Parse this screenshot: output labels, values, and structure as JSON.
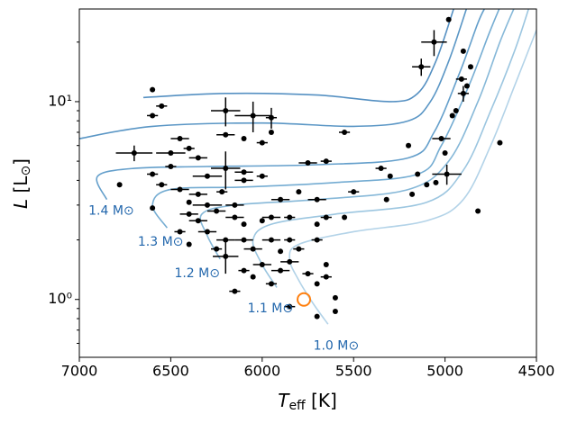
{
  "chart_data": {
    "type": "scatter",
    "xlabel": {
      "main": "T",
      "sub": "eff",
      "rest": " [K]"
    },
    "ylabel": {
      "main": "L",
      "rest": " [L",
      "sub": "⊙",
      "end": "]"
    },
    "xlim": [
      7000,
      4500
    ],
    "xticks": [
      7000,
      6500,
      6000,
      5500,
      5000,
      4500
    ],
    "ylim": [
      0.51,
      29.4
    ],
    "log_y": true,
    "yticks": [
      {
        "value": 1,
        "label": "10⁰"
      },
      {
        "value": 10,
        "label": "10¹"
      }
    ],
    "yminorticks": [
      0.6,
      0.7,
      0.8,
      0.9,
      2,
      3,
      4,
      5,
      6,
      7,
      8,
      9,
      20
    ],
    "color": "#000000",
    "x": [
      4980,
      5060,
      5130,
      4900,
      4860,
      4910,
      4880,
      4900,
      6600,
      6550,
      6600,
      6200,
      6050,
      5950,
      5950,
      5550,
      5200,
      4960,
      4940,
      5020,
      5000,
      4700,
      4990,
      5350,
      5300,
      5150,
      5100,
      5180,
      5320,
      5500,
      5750,
      5650,
      6000,
      6100,
      6200,
      6450,
      6500,
      6700,
      6400,
      6350,
      6500,
      6300,
      6200,
      6100,
      6100,
      6000,
      6600,
      6550,
      6780,
      6450,
      6350,
      6400,
      6300,
      6220,
      6250,
      6150,
      5900,
      5800,
      5700,
      6600,
      6400,
      6350,
      6150,
      6100,
      6000,
      5950,
      5850,
      5650,
      5700,
      5550,
      6450,
      6300,
      6200,
      6100,
      5950,
      5850,
      5700,
      6400,
      6250,
      6050,
      5900,
      5800,
      6200,
      6000,
      5850,
      5650,
      6100,
      6050,
      5900,
      5750,
      5650,
      5950,
      5700,
      6150,
      5600,
      5600,
      5700,
      5850,
      4820,
      5050
    ],
    "values": [
      26,
      20,
      15,
      18,
      15,
      13,
      12,
      11,
      11.5,
      9.5,
      8.5,
      9,
      8.5,
      8.3,
      7,
      7,
      6,
      8.5,
      9,
      6.5,
      5.5,
      6.2,
      4.3,
      4.6,
      4.2,
      4.3,
      3.8,
      3.4,
      3.2,
      3.5,
      4.9,
      5,
      6.2,
      6.5,
      6.8,
      6.5,
      5.5,
      5.5,
      5.8,
      5.2,
      4.7,
      4.2,
      4.6,
      4.4,
      4.0,
      4.2,
      4.3,
      3.8,
      3.8,
      3.6,
      3.4,
      3.1,
      3.0,
      3.5,
      2.8,
      3.0,
      3.2,
      3.5,
      3.2,
      2.9,
      2.7,
      2.5,
      2.6,
      2.4,
      2.5,
      2.6,
      2.6,
      2.6,
      2.4,
      2.6,
      2.2,
      2.2,
      2.0,
      2.0,
      2.0,
      2.0,
      2.0,
      1.9,
      1.8,
      1.8,
      1.75,
      1.8,
      1.65,
      1.5,
      1.55,
      1.5,
      1.4,
      1.3,
      1.4,
      1.35,
      1.3,
      1.2,
      1.2,
      1.1,
      1.02,
      0.87,
      0.82,
      0.92,
      2.8,
      3.9
    ],
    "xerr": [
      0,
      70,
      50,
      0,
      0,
      30,
      0,
      30,
      0,
      30,
      30,
      80,
      100,
      30,
      0,
      30,
      0,
      0,
      0,
      50,
      0,
      0,
      80,
      30,
      0,
      0,
      0,
      0,
      0,
      30,
      50,
      30,
      30,
      0,
      50,
      50,
      80,
      100,
      30,
      50,
      30,
      80,
      80,
      50,
      50,
      30,
      30,
      30,
      0,
      50,
      50,
      0,
      80,
      30,
      50,
      50,
      50,
      0,
      50,
      0,
      50,
      50,
      50,
      0,
      0,
      50,
      30,
      30,
      0,
      0,
      30,
      50,
      50,
      50,
      50,
      30,
      30,
      0,
      30,
      50,
      0,
      30,
      70,
      50,
      50,
      0,
      30,
      0,
      50,
      30,
      30,
      30,
      0,
      30,
      0,
      0,
      0,
      30,
      0,
      0
    ],
    "yerr": [
      0,
      3,
      1.5,
      0,
      0,
      0,
      0,
      1,
      0,
      0,
      0,
      1.5,
      1.5,
      1,
      0,
      0,
      0,
      0,
      0,
      0,
      0,
      0,
      0.5,
      0,
      0,
      0,
      0,
      0,
      0,
      0,
      0,
      0,
      0,
      0,
      0,
      0,
      0,
      0.5,
      0,
      0,
      0,
      0,
      1,
      0,
      0,
      0,
      0,
      0,
      0,
      0,
      0,
      0,
      0,
      0,
      0,
      0,
      0,
      0,
      0,
      0,
      0,
      0,
      0,
      0,
      0,
      0,
      0,
      0,
      0,
      0,
      0,
      0,
      0,
      0,
      0,
      0,
      0,
      0,
      0,
      0,
      0,
      0,
      0.3,
      0,
      0,
      0,
      0,
      0,
      0,
      0,
      0,
      0,
      0,
      0,
      0,
      0,
      0,
      0,
      0,
      0
    ],
    "sun": {
      "x": 5772,
      "y": 1,
      "color": "#ff7f0e"
    },
    "tracks": [
      {
        "label": "1.0 M⊙",
        "label_x": 5720,
        "label_y": 0.58,
        "color": "#b3d3e8",
        "x": [
          5640,
          5720,
          5800,
          5850,
          5800,
          5500,
          5100,
          4900,
          4750,
          4620,
          4500
        ],
        "values": [
          0.75,
          0.95,
          1.25,
          1.6,
          1.9,
          2.2,
          2.5,
          3.2,
          6,
          12,
          23
        ]
      },
      {
        "label": "1.1 M⊙",
        "label_x": 6080,
        "label_y": 0.9,
        "color": "#9cc6e0",
        "x": [
          5920,
          6000,
          6050,
          5950,
          5600,
          5100,
          4900,
          4750,
          4620,
          4540
        ],
        "values": [
          1.15,
          1.5,
          2.0,
          2.4,
          2.7,
          3.1,
          4.5,
          9,
          18,
          30
        ]
      },
      {
        "label": "1.2 M⊙",
        "label_x": 6480,
        "label_y": 1.35,
        "color": "#86b8d8",
        "x": [
          6230,
          6300,
          6330,
          6150,
          5700,
          5200,
          4980,
          4820,
          4700,
          4620
        ],
        "values": [
          1.6,
          2.1,
          2.7,
          3.0,
          3.2,
          3.6,
          5,
          10,
          20,
          30
        ]
      },
      {
        "label": "1.3 M⊙",
        "label_x": 6680,
        "label_y": 1.95,
        "color": "#74acd2",
        "x": [
          6520,
          6600,
          6500,
          6100,
          5600,
          5150,
          5020,
          4870,
          4760,
          4700
        ],
        "values": [
          2.3,
          3.0,
          3.6,
          3.7,
          3.9,
          4.3,
          6,
          12,
          22,
          30
        ]
      },
      {
        "label": "1.4 M⊙",
        "label_x": 6950,
        "label_y": 2.8,
        "color": "#649fcb",
        "x": [
          6850,
          6900,
          6700,
          6300,
          5700,
          5200,
          5060,
          4920,
          4820,
          4780
        ],
        "values": [
          3.2,
          4.2,
          4.6,
          4.7,
          4.8,
          5.2,
          7,
          14,
          25,
          30
        ]
      },
      {
        "color": "#5a96c5",
        "x": [
          7000,
          6600,
          6000,
          5500,
          5200,
          5080,
          4980,
          4880
        ],
        "values": [
          6.5,
          7.5,
          7.8,
          7.5,
          8.0,
          10,
          16,
          30
        ]
      },
      {
        "color": "#5590c2",
        "x": [
          6650,
          6200,
          5700,
          5300,
          5150,
          5050,
          4950
        ],
        "values": [
          10.5,
          11,
          10.8,
          10,
          11,
          16,
          30
        ]
      }
    ]
  }
}
